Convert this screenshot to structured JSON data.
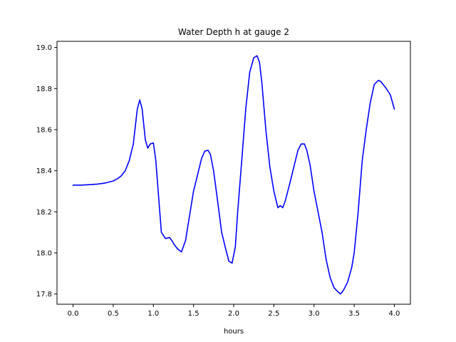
{
  "chart_data": {
    "type": "line",
    "title": "Water Depth h at gauge 2",
    "xlabel": "hours",
    "ylabel": "",
    "xlim": [
      -0.2,
      4.2
    ],
    "ylim": [
      17.75,
      19.03
    ],
    "xticks": [
      0.0,
      0.5,
      1.0,
      1.5,
      2.0,
      2.5,
      3.0,
      3.5,
      4.0
    ],
    "xtick_labels": [
      "0.0",
      "0.5",
      "1.0",
      "1.5",
      "2.0",
      "2.5",
      "3.0",
      "3.5",
      "4.0"
    ],
    "yticks": [
      17.8,
      18.0,
      18.2,
      18.4,
      18.6,
      18.8,
      19.0
    ],
    "ytick_labels": [
      "17.8",
      "18.0",
      "18.2",
      "18.4",
      "18.6",
      "18.8",
      "19.0"
    ],
    "grid": false,
    "series": [
      {
        "color": "#0000ff",
        "x": [
          0.0,
          0.1,
          0.2,
          0.3,
          0.4,
          0.5,
          0.55,
          0.6,
          0.65,
          0.7,
          0.75,
          0.8,
          0.83,
          0.86,
          0.9,
          0.93,
          0.96,
          1.0,
          1.03,
          1.06,
          1.1,
          1.15,
          1.2,
          1.23,
          1.26,
          1.3,
          1.35,
          1.4,
          1.45,
          1.5,
          1.55,
          1.6,
          1.64,
          1.68,
          1.71,
          1.75,
          1.8,
          1.85,
          1.9,
          1.94,
          1.98,
          2.02,
          2.05,
          2.1,
          2.15,
          2.2,
          2.25,
          2.29,
          2.32,
          2.35,
          2.4,
          2.45,
          2.5,
          2.55,
          2.58,
          2.61,
          2.64,
          2.7,
          2.75,
          2.8,
          2.84,
          2.88,
          2.91,
          2.95,
          3.0,
          3.05,
          3.1,
          3.15,
          3.2,
          3.25,
          3.3,
          3.33,
          3.37,
          3.42,
          3.47,
          3.5,
          3.55,
          3.6,
          3.65,
          3.7,
          3.75,
          3.8,
          3.83,
          3.86,
          3.9,
          3.95,
          4.0
        ],
        "values": [
          18.33,
          18.33,
          18.332,
          18.335,
          18.34,
          18.35,
          18.36,
          18.375,
          18.4,
          18.45,
          18.53,
          18.7,
          18.745,
          18.7,
          18.55,
          18.51,
          18.53,
          18.535,
          18.45,
          18.3,
          18.1,
          18.07,
          18.075,
          18.06,
          18.04,
          18.02,
          18.005,
          18.06,
          18.18,
          18.3,
          18.38,
          18.46,
          18.495,
          18.5,
          18.48,
          18.4,
          18.25,
          18.1,
          18.02,
          17.96,
          17.95,
          18.03,
          18.2,
          18.45,
          18.7,
          18.88,
          18.95,
          18.96,
          18.93,
          18.83,
          18.6,
          18.42,
          18.3,
          18.22,
          18.23,
          18.22,
          18.25,
          18.34,
          18.42,
          18.5,
          18.53,
          18.53,
          18.5,
          18.43,
          18.3,
          18.2,
          18.1,
          17.97,
          17.88,
          17.83,
          17.81,
          17.8,
          17.82,
          17.86,
          17.93,
          18.0,
          18.2,
          18.45,
          18.6,
          18.73,
          18.82,
          18.84,
          18.835,
          18.82,
          18.8,
          18.77,
          18.7
        ]
      }
    ]
  }
}
